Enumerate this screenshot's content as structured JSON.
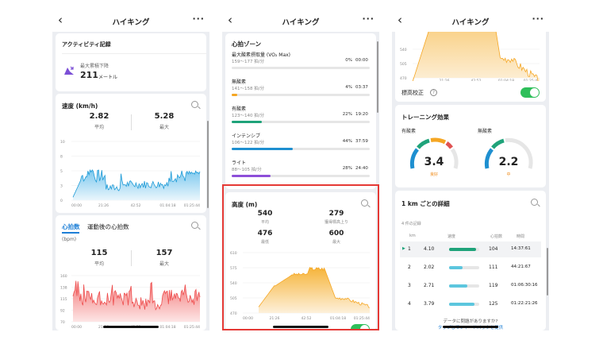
{
  "nav": {
    "title": "ハイキング",
    "more": "···"
  },
  "p1": {
    "activity": {
      "title": "アクティビティ記録",
      "label": "最大累積下降",
      "value": "211",
      "unit": "メートル"
    },
    "speed": {
      "title": "速度 (km/h)",
      "avg_value": "2.82",
      "avg_label": "平均",
      "max_value": "5.28",
      "max_label": "最大",
      "yticks": [
        "10",
        "8",
        "5",
        "3",
        "0"
      ],
      "xticks": [
        "00:00",
        "21:26",
        "42:52",
        "01:04:18",
        "01:25:44"
      ],
      "color": "#1e9bd7"
    },
    "hr": {
      "tab_active": "心拍数",
      "tab_other": "運動後の心拍数",
      "unit": "(bpm)",
      "avg_value": "115",
      "avg_label": "平均",
      "max_value": "157",
      "max_label": "最大",
      "yticks": [
        "160",
        "138",
        "115",
        "92",
        "70"
      ],
      "xticks": [
        "00:00",
        "21:26",
        "42:52",
        "01:04:18",
        "01:25:44"
      ],
      "color": "#ee4b4b"
    }
  },
  "p2": {
    "zones_title": "心拍ゾーン",
    "zones": [
      {
        "name": "最大酸素摂取量 (VO₂ Max)",
        "range": "159～177 拍/分",
        "pct": "0%",
        "time": "00:00",
        "fill": 0.0,
        "color": "#e05252"
      },
      {
        "name": "無酸素",
        "range": "141～158 拍/分",
        "pct": "4%",
        "time": "03:37",
        "fill": 0.04,
        "color": "#f5a623"
      },
      {
        "name": "有酸素",
        "range": "123～140 拍/分",
        "pct": "22%",
        "time": "19:20",
        "fill": 0.22,
        "color": "#1fa37a"
      },
      {
        "name": "インテンシブ",
        "range": "106～122 拍/分",
        "pct": "44%",
        "time": "37:59",
        "fill": 0.44,
        "color": "#1e8fd0"
      },
      {
        "name": "ライト",
        "range": "88～105 拍/分",
        "pct": "28%",
        "time": "24:40",
        "fill": 0.28,
        "color": "#8e4fd9"
      }
    ],
    "altitude": {
      "title": "高度 (m)",
      "stats": [
        {
          "value": "540",
          "label": "平均"
        },
        {
          "value": "279",
          "label": "獲得標高上り"
        },
        {
          "value": "476",
          "label": "最低"
        },
        {
          "value": "600",
          "label": "最大"
        }
      ],
      "yticks": [
        "610",
        "575",
        "540",
        "505",
        "470"
      ],
      "xticks": [
        "00:00",
        "21:26",
        "42:52",
        "01:04:18",
        "01:25:44"
      ],
      "color": "#f5a623"
    }
  },
  "p3": {
    "top_chart": {
      "yticks": [
        "540",
        "505",
        "470"
      ],
      "xticks": [
        "21:26",
        "42:52",
        "01:04:18",
        "01:25:44"
      ]
    },
    "elev_correct": "標高校正",
    "training": {
      "title": "トレーニング効果",
      "aerobic": {
        "label": "有酸素",
        "value": "3.4",
        "status": "良好"
      },
      "anaerobic": {
        "label": "無酸素",
        "value": "2.2",
        "status": "中"
      },
      "status_color": "#f08c1a"
    },
    "km": {
      "title": "1 km ごとの詳細",
      "records": "4 件の記録",
      "headers": [
        "km",
        "速度",
        "心拍数",
        "時間"
      ],
      "rows": [
        {
          "km": "1",
          "speed": "4.10",
          "hr": "104",
          "time": "14:37:61",
          "fill": 0.9,
          "color": "#1fa37a"
        },
        {
          "km": "2",
          "speed": "2.02",
          "hr": "111",
          "time": "44:21:67",
          "fill": 0.45,
          "color": "#5cc6de"
        },
        {
          "km": "3",
          "speed": "2.71",
          "hr": "119",
          "time": "01:06:30:16",
          "fill": 0.6,
          "color": "#5cc6de"
        },
        {
          "km": "4",
          "speed": "3.79",
          "hr": "125",
          "time": "01:22:21:26",
          "fill": 0.83,
          "color": "#5cc6de"
        }
      ]
    },
    "feedback": {
      "question": "データに問題がありますか?",
      "link": "タップしてフィードバックを提供"
    }
  }
}
